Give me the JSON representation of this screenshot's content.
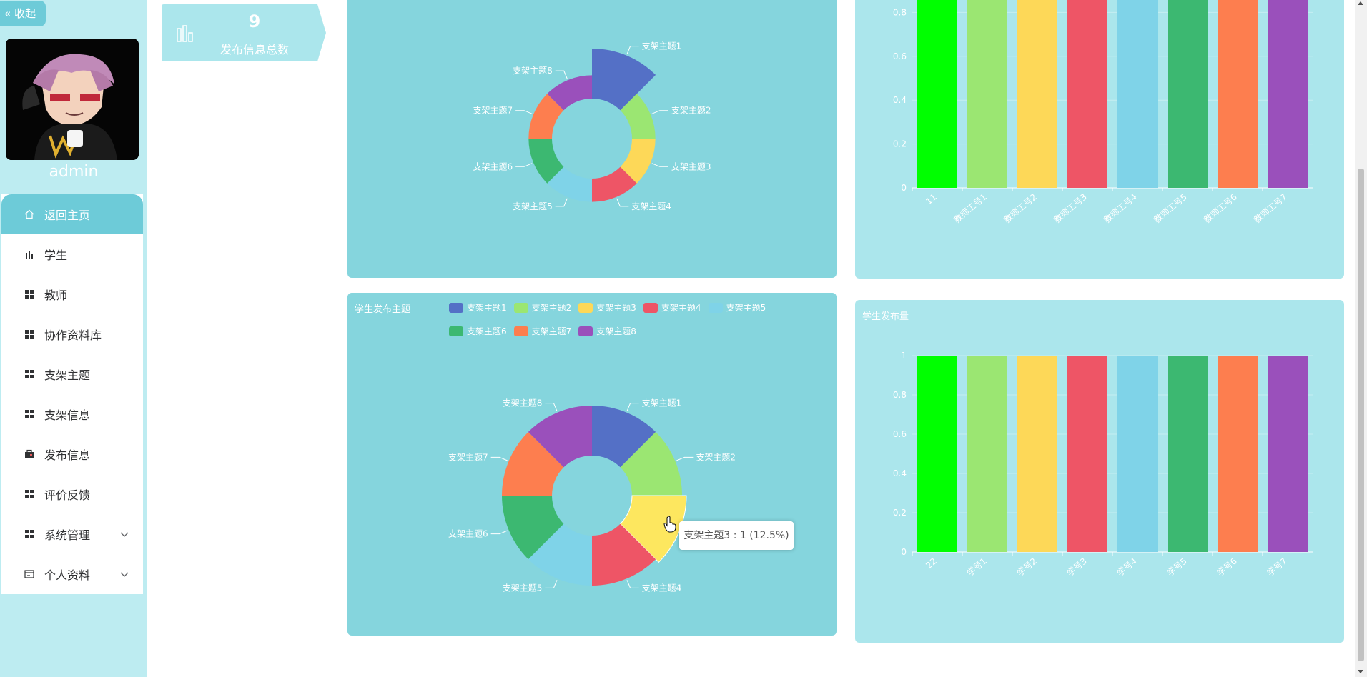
{
  "sidebar": {
    "collapse_label": "收起",
    "username": "admin",
    "items": [
      {
        "label": "返回主页",
        "icon": "home-icon",
        "active": true
      },
      {
        "label": "学生",
        "icon": "bar-chart-icon"
      },
      {
        "label": "教师",
        "icon": "grid-icon"
      },
      {
        "label": "协作资料库",
        "icon": "grid-icon"
      },
      {
        "label": "支架主题",
        "icon": "grid-icon"
      },
      {
        "label": "支架信息",
        "icon": "grid-icon"
      },
      {
        "label": "发布信息",
        "icon": "briefcase-icon"
      },
      {
        "label": "评价反馈",
        "icon": "grid-icon"
      },
      {
        "label": "系统管理",
        "icon": "grid-icon",
        "expandable": true
      },
      {
        "label": "个人资料",
        "icon": "card-icon",
        "expandable": true
      }
    ]
  },
  "stat": {
    "value": "9",
    "label": "发布信息总数"
  },
  "colors": {
    "palette": [
      "#5470c6",
      "#9be672",
      "#fdd858",
      "#ee5566",
      "#7fd3e8",
      "#3cb871",
      "#fd7e4f",
      "#9a50bb"
    ],
    "bar_palette": [
      "#00ff00",
      "#9be672",
      "#fdd858",
      "#ee5566",
      "#7fd3e8",
      "#3cb871",
      "#fd7e4f",
      "#9a50bb"
    ],
    "highlight": "#fde75f"
  },
  "chart_data": [
    {
      "type": "pie",
      "title": "",
      "labels": [
        "支架主题1",
        "支架主题2",
        "支架主题3",
        "支架主题4",
        "支架主题5",
        "支架主题6",
        "支架主题7",
        "支架主题8"
      ],
      "values": [
        3,
        1,
        1,
        1,
        1,
        1,
        1,
        1
      ],
      "rose": true
    },
    {
      "type": "bar",
      "categories": [
        "11",
        "教师工号1",
        "教师工号2",
        "教师工号3",
        "教师工号4",
        "教师工号5",
        "教师工号6",
        "教师工号7"
      ],
      "values": [
        1,
        1,
        1,
        1,
        1,
        1,
        1,
        1
      ],
      "ylim": [
        0,
        1
      ],
      "yticks": [
        "0",
        "0.2",
        "0.4",
        "0.6",
        "0.8"
      ]
    },
    {
      "type": "pie",
      "title": "学生发布主题",
      "labels": [
        "支架主题1",
        "支架主题2",
        "支架主题3",
        "支架主题4",
        "支架主题5",
        "支架主题6",
        "支架主题7",
        "支架主题8"
      ],
      "values": [
        1,
        1,
        1,
        1,
        1,
        1,
        1,
        1
      ],
      "highlighted": "支架主题3"
    },
    {
      "type": "bar",
      "title": "学生发布量",
      "categories": [
        "22",
        "学号1",
        "学号2",
        "学号3",
        "学号4",
        "学号5",
        "学号6",
        "学号7"
      ],
      "values": [
        1,
        1,
        1,
        1,
        1,
        1,
        1,
        1
      ],
      "ylim": [
        0,
        1
      ],
      "yticks": [
        "0",
        "0.2",
        "0.4",
        "0.6",
        "0.8",
        "1"
      ]
    }
  ],
  "tooltip": "支架主题3 : 1 (12.5%)"
}
